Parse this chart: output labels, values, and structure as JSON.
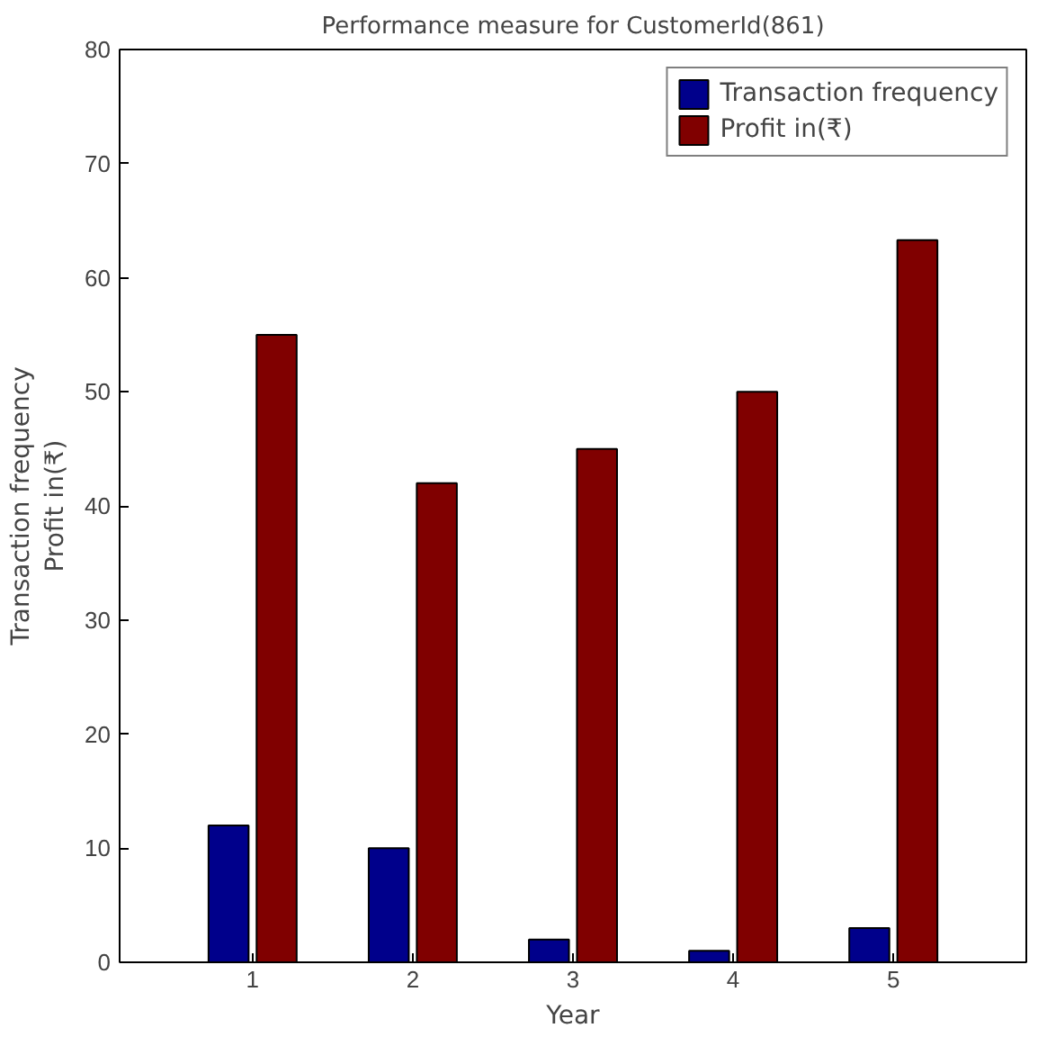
{
  "chart_data": {
    "type": "bar",
    "title": "Performance measure for CustomerId(861)",
    "xlabel": "Year",
    "ylabel": "Transaction frequency\nProfit in(₹)",
    "categories": [
      "1",
      "2",
      "3",
      "4",
      "5"
    ],
    "series": [
      {
        "name": "Transaction frequency",
        "color": "#00008b",
        "values": [
          12,
          10,
          2,
          1,
          3
        ]
      },
      {
        "name": "Profit in(₹)",
        "color": "#800000",
        "values": [
          55,
          42,
          45,
          50,
          63.3
        ]
      }
    ],
    "ylim": [
      0,
      80
    ],
    "yticks": [
      0,
      10,
      20,
      30,
      40,
      50,
      60,
      70,
      80
    ],
    "legend": "top right",
    "grid": false
  }
}
